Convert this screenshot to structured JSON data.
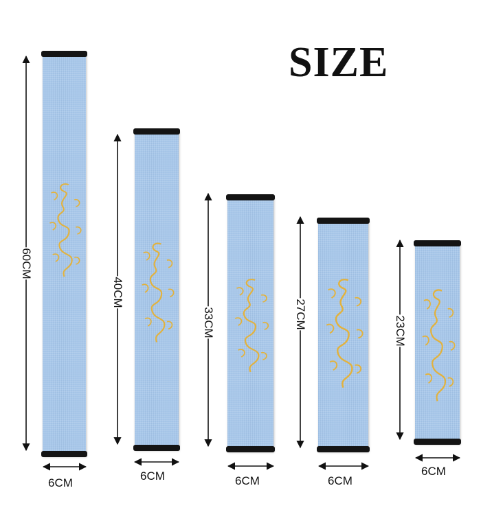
{
  "title": "SIZE",
  "colors": {
    "sleeve": "#a9c8ea",
    "cap": "#141414",
    "embroidery": "#e3b23c",
    "arrow": "#111111"
  },
  "items": [
    {
      "length_label": "60CM",
      "width_label": "6CM",
      "length_cm": 60,
      "width_cm": 6
    },
    {
      "length_label": "40CM",
      "width_label": "6CM",
      "length_cm": 40,
      "width_cm": 6
    },
    {
      "length_label": "33CM",
      "width_label": "6CM",
      "length_cm": 33,
      "width_cm": 6
    },
    {
      "length_label": "27CM",
      "width_label": "6CM",
      "length_cm": 27,
      "width_cm": 6
    },
    {
      "length_label": "23CM",
      "width_label": "6CM",
      "length_cm": 23,
      "width_cm": 6
    }
  ]
}
